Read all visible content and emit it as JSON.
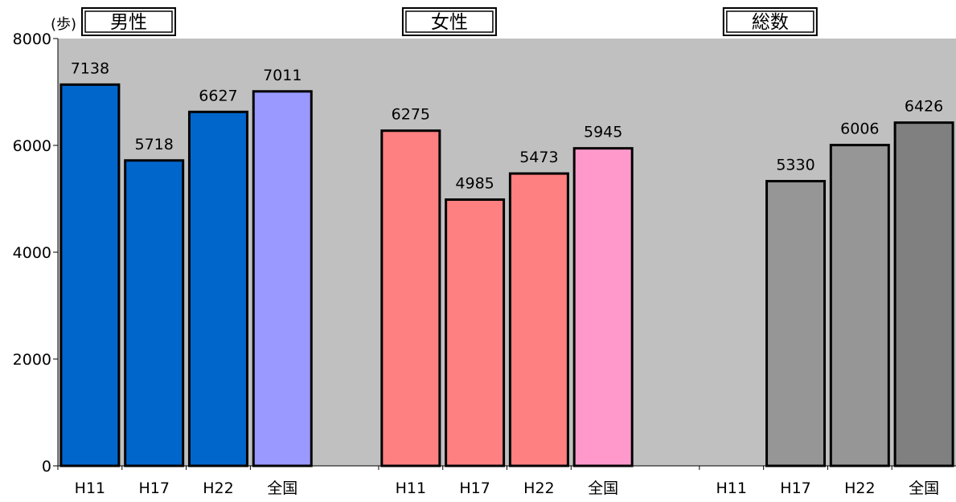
{
  "chart_data": {
    "type": "bar",
    "unit": "(歩)",
    "ylim": [
      0,
      8000
    ],
    "yticks": [
      "0",
      "2000",
      "4000",
      "6000",
      "8000"
    ],
    "grid": false,
    "plot_background": "#C0C0C0",
    "groups": [
      {
        "title": "男性",
        "categories": [
          "H11",
          "H17",
          "H22",
          "全国"
        ],
        "values": [
          7138,
          5718,
          6627,
          7011
        ],
        "colors": [
          "#0066CC",
          "#0066CC",
          "#0066CC",
          "#9999FF"
        ]
      },
      {
        "title": "女性",
        "categories": [
          "H11",
          "H17",
          "H22",
          "全国"
        ],
        "values": [
          6275,
          4985,
          5473,
          5945
        ],
        "colors": [
          "#FF8080",
          "#FF8080",
          "#FF8080",
          "#FF99CC"
        ]
      },
      {
        "title": "総数",
        "categories": [
          "H11",
          "H17",
          "H22",
          "全国"
        ],
        "values": [
          null,
          5330,
          6006,
          6426
        ],
        "colors": [
          "#969696",
          "#969696",
          "#969696",
          "#808080"
        ]
      }
    ]
  }
}
